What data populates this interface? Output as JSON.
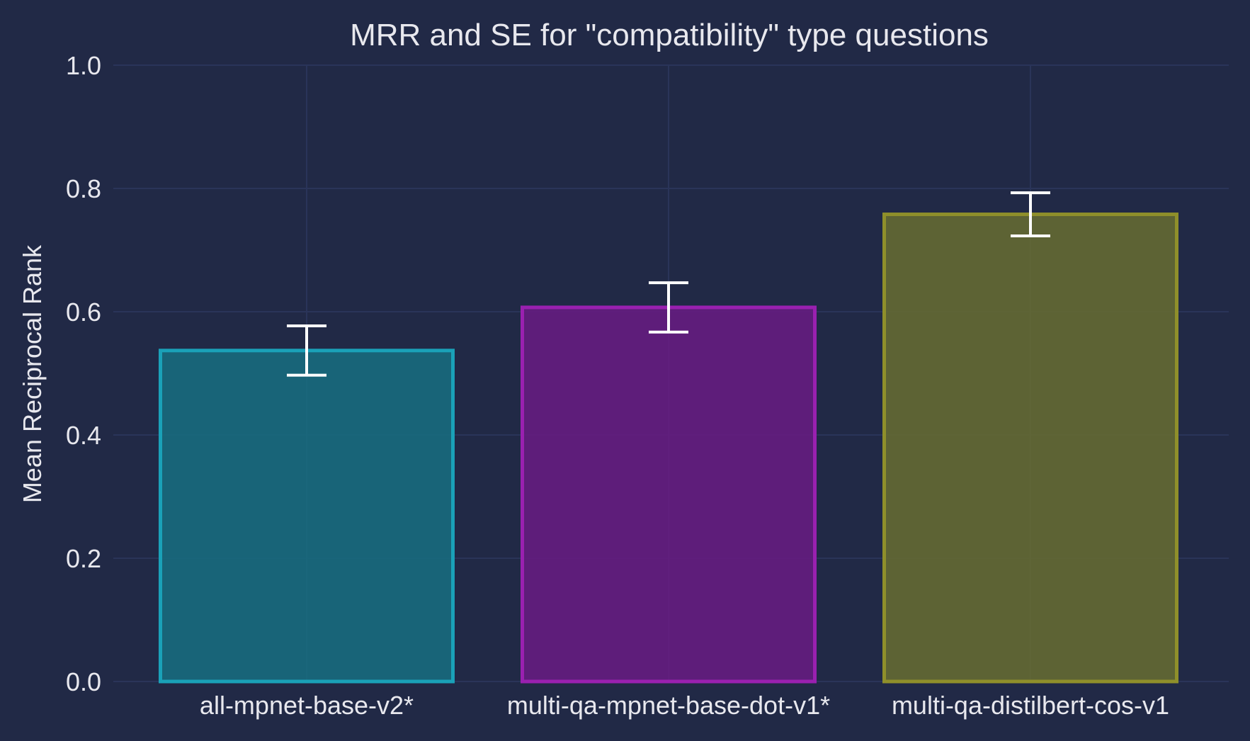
{
  "chart_data": {
    "type": "bar",
    "title": "MRR and SE for \"compatibility\" type questions",
    "xlabel": "",
    "ylabel": "Mean Reciprocal Rank",
    "categories": [
      "all-mpnet-base-v2*",
      "multi-qa-mpnet-base-dot-v1*",
      "multi-qa-distilbert-cos-v1"
    ],
    "values": [
      0.537,
      0.607,
      0.758
    ],
    "errors": [
      0.04,
      0.04,
      0.035
    ],
    "ylim": [
      0.0,
      1.0
    ],
    "yticks": [
      "0.0",
      "0.2",
      "0.4",
      "0.6",
      "0.8",
      "1.0"
    ],
    "grid": true,
    "colors": {
      "background": "#212946",
      "grid": "#2a3459",
      "text": "#e8e8ee",
      "error_bar": "#ffffff",
      "bar_fills": [
        "#18697d",
        "#641c7f",
        "#636833"
      ],
      "bar_edges": [
        "#1aa1b8",
        "#9a20b0",
        "#8f8f2a"
      ]
    }
  }
}
